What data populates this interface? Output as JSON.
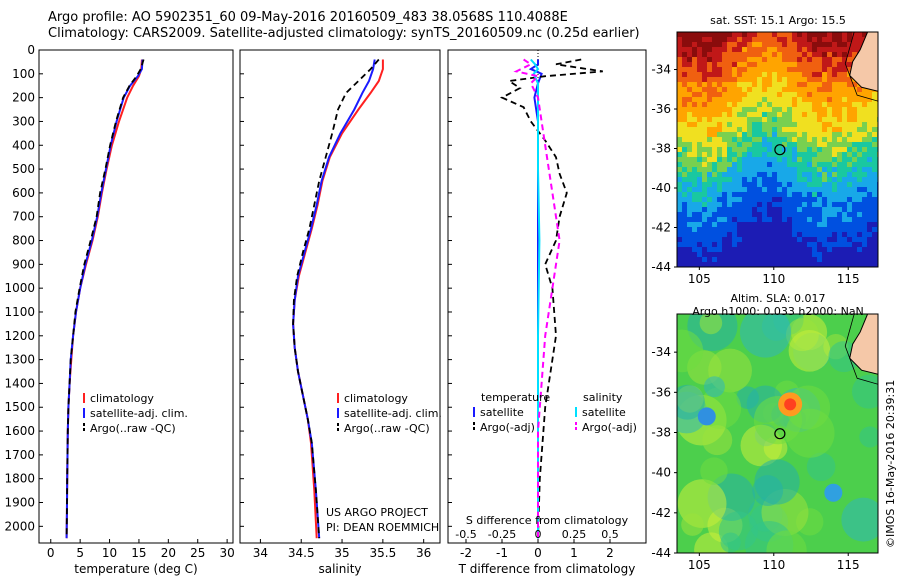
{
  "header": {
    "line1": "Argo profile: AO 5902351_60 09-May-2016 20160509_483 38.0568S 110.4088E",
    "line2": "Climatology: CARS2009. Satellite-adjusted climatology: synTS_20160509.nc (0.25d earlier)"
  },
  "colors": {
    "climatology": "#ff2020",
    "satellite": "#1a1aff",
    "argo": "#000000",
    "salinity_sat": "#00e0ff",
    "salinity_argo": "#ff00ff"
  },
  "chart_data": [
    {
      "type": "line",
      "xlabel": "temperature (deg C)",
      "ylabel": "",
      "xlim": [
        -2,
        31
      ],
      "ylim": [
        2070,
        0
      ],
      "xticks": [
        0,
        5,
        10,
        15,
        20,
        25,
        30
      ],
      "yticks": [
        0,
        100,
        200,
        300,
        400,
        500,
        600,
        700,
        800,
        900,
        1000,
        1100,
        1200,
        1300,
        1400,
        1500,
        1600,
        1700,
        1800,
        1900,
        2000
      ],
      "legend": [
        "climatology",
        "satellite-adj. clim.",
        "Argo(..raw -QC)"
      ],
      "series": [
        {
          "name": "climatology",
          "x": [
            15.5,
            15.4,
            15.0,
            14.0,
            13.0,
            11.6,
            10.4,
            9.5,
            8.7,
            8.0,
            7.1,
            6.0,
            5.0,
            4.3,
            3.8,
            3.5,
            3.2,
            3.0,
            2.9,
            2.8,
            2.75,
            2.7
          ],
          "depth": [
            40,
            80,
            110,
            150,
            200,
            300,
            400,
            500,
            600,
            700,
            800,
            900,
            1000,
            1100,
            1200,
            1300,
            1400,
            1500,
            1600,
            1800,
            1950,
            2050
          ]
        },
        {
          "name": "satellite-adj. clim.",
          "x": [
            15.6,
            15.5,
            14.8,
            13.5,
            12.4,
            11.2,
            10.2,
            9.4,
            8.6,
            7.9,
            7.0,
            5.9,
            5.0,
            4.3,
            3.8,
            3.4,
            3.2,
            3.0,
            2.9,
            2.8,
            2.75,
            2.7
          ],
          "depth": [
            40,
            80,
            110,
            150,
            200,
            300,
            400,
            500,
            600,
            700,
            800,
            900,
            1000,
            1100,
            1200,
            1300,
            1400,
            1500,
            1600,
            1800,
            1950,
            2050
          ]
        },
        {
          "name": "Argo(..raw -QC)",
          "x": [
            15.8,
            15.3,
            14.6,
            13.4,
            12.3,
            11.1,
            10.1,
            9.3,
            8.4,
            7.8,
            6.8,
            5.7,
            4.9,
            4.2,
            3.8,
            3.4,
            3.2,
            3.0,
            2.9,
            2.8,
            2.75,
            2.7
          ],
          "depth": [
            40,
            80,
            110,
            150,
            200,
            300,
            400,
            500,
            600,
            700,
            800,
            900,
            1000,
            1100,
            1200,
            1300,
            1400,
            1500,
            1600,
            1800,
            1950,
            2050
          ]
        }
      ]
    },
    {
      "type": "line",
      "xlabel": "salinity",
      "xlim": [
        33.75,
        36.2
      ],
      "ylim": [
        2070,
        0
      ],
      "xticks": [
        34,
        34.5,
        35,
        35.5,
        36
      ],
      "legend": [
        "climatology",
        "satellite-adj. clim.",
        "Argo(..raw -QC)"
      ],
      "annotation": [
        "US ARGO PROJECT",
        "PI: DEAN ROEMMICH"
      ],
      "series": [
        {
          "name": "climatology",
          "x": [
            35.5,
            35.5,
            35.45,
            35.35,
            35.2,
            35.0,
            34.85,
            34.76,
            34.7,
            34.63,
            34.55,
            34.47,
            34.42,
            34.4,
            34.42,
            34.46,
            34.52,
            34.58,
            34.62,
            34.66,
            34.69
          ],
          "depth": [
            40,
            80,
            130,
            180,
            250,
            350,
            450,
            550,
            650,
            750,
            850,
            950,
            1050,
            1150,
            1250,
            1350,
            1450,
            1550,
            1650,
            1850,
            2050
          ]
        },
        {
          "name": "satellite-adj. clim.",
          "x": [
            35.4,
            35.38,
            35.33,
            35.25,
            35.15,
            34.98,
            34.84,
            34.75,
            34.69,
            34.62,
            34.54,
            34.46,
            34.42,
            34.4,
            34.42,
            34.46,
            34.52,
            34.58,
            34.63,
            34.68,
            34.72
          ],
          "depth": [
            40,
            80,
            130,
            180,
            250,
            350,
            450,
            550,
            650,
            750,
            850,
            950,
            1050,
            1150,
            1250,
            1350,
            1450,
            1550,
            1650,
            1850,
            2050
          ]
        },
        {
          "name": "Argo(..raw -QC)",
          "x": [
            35.45,
            35.35,
            35.2,
            35.05,
            34.95,
            34.88,
            34.8,
            34.72,
            34.66,
            34.6,
            34.52,
            34.45,
            34.41,
            34.4,
            34.42,
            34.46,
            34.52,
            34.58,
            34.63,
            34.68,
            34.72
          ],
          "depth": [
            40,
            80,
            130,
            180,
            250,
            350,
            450,
            550,
            650,
            750,
            850,
            950,
            1050,
            1150,
            1250,
            1350,
            1450,
            1550,
            1650,
            1850,
            2050
          ]
        }
      ]
    },
    {
      "type": "line",
      "xlabel": "T difference from climatology",
      "top_label": "S difference from climatology",
      "xlim": [
        -2.5,
        3
      ],
      "ylim": [
        2070,
        0
      ],
      "xticks_bottom": [
        -2,
        -1,
        0,
        1,
        2
      ],
      "xticks_top": [
        -0.5,
        -0.25,
        0,
        0.25,
        0.5
      ],
      "legend_temperature": [
        "temperature",
        "satellite",
        "Argo(-adj)"
      ],
      "legend_salinity": [
        "salinity",
        "satellite",
        "Argo(-adj)"
      ],
      "series": [
        {
          "name": "temperature satellite",
          "x": [
            0,
            0,
            -0.2,
            0.1,
            0,
            -0.1,
            0,
            0,
            0,
            0,
            0,
            0,
            0,
            0,
            0,
            0,
            0,
            0,
            0
          ],
          "depth": [
            40,
            60,
            80,
            100,
            140,
            200,
            300,
            400,
            500,
            600,
            800,
            1000,
            1200,
            1400,
            1500,
            1600,
            1800,
            1950,
            2050
          ]
        },
        {
          "name": "temperature Argo(-adj)",
          "x": [
            1.2,
            0.5,
            1.8,
            0.2,
            -0.8,
            -0.5,
            -1.0,
            -0.4,
            -0.2,
            0.2,
            0.5,
            0.6,
            0.8,
            0.6,
            0.5,
            0.2,
            0.4,
            0.5,
            0.2,
            0.05,
            0
          ],
          "depth": [
            40,
            60,
            90,
            110,
            130,
            160,
            200,
            240,
            300,
            380,
            450,
            520,
            600,
            700,
            800,
            900,
            1000,
            1200,
            1500,
            1800,
            2050
          ]
        },
        {
          "name": "salinity satellite",
          "x": [
            -0.05,
            -0.02,
            0,
            -0.03,
            0,
            0,
            0,
            0,
            0.01,
            0,
            0,
            0
          ],
          "depth": [
            40,
            60,
            80,
            100,
            140,
            200,
            300,
            500,
            800,
            1200,
            1600,
            2050
          ]
        },
        {
          "name": "salinity Argo(-adj)",
          "x": [
            -0.1,
            -0.05,
            -0.15,
            0,
            -0.05,
            0,
            0.05,
            0.1,
            0.15,
            0.1,
            0.05,
            0,
            0
          ],
          "depth": [
            40,
            60,
            90,
            110,
            140,
            200,
            400,
            600,
            800,
            1000,
            1200,
            1600,
            2050
          ]
        }
      ]
    }
  ],
  "maps": {
    "sst": {
      "title": "sat. SST: 15.1 Argo: 15.5",
      "xticks": [
        105,
        110,
        115
      ],
      "yticks": [
        -34,
        -36,
        -38,
        -40,
        -42,
        -44
      ],
      "argo_lon": 110.41,
      "argo_lat": -38.06
    },
    "sla": {
      "title1": "Altim. SLA: 0.017",
      "title2": "Argo h1000: 0.033 h2000: NaN",
      "xticks": [
        105,
        110,
        115
      ],
      "yticks": [
        -34,
        -36,
        -38,
        -40,
        -42,
        -44
      ],
      "argo_lon": 110.41,
      "argo_lat": -38.06
    }
  },
  "watermark": "©IMOS 16-May-2016 20:39:31"
}
